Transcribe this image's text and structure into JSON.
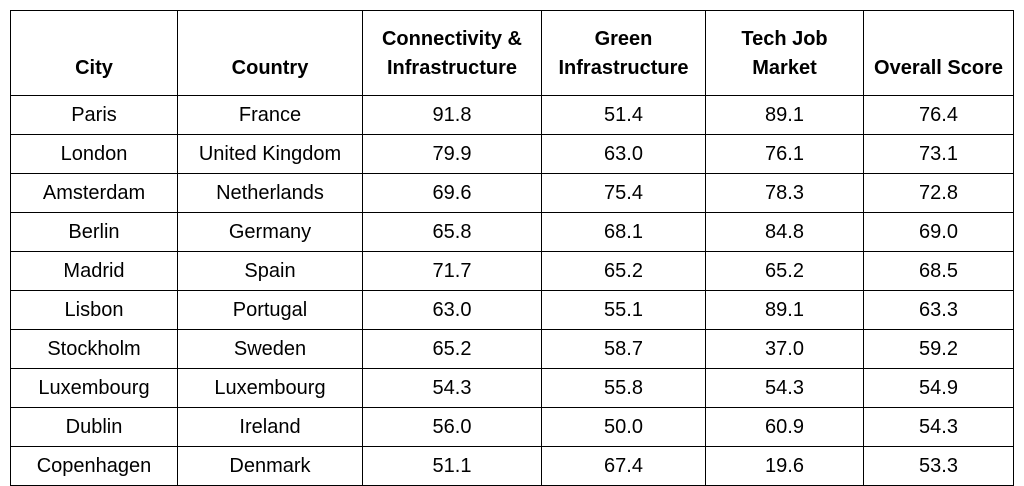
{
  "table": {
    "headers": [
      "City",
      "Country",
      "Connectivity & Infrastructure",
      "Green Infrastructure",
      "Tech Job Market",
      "Overall Score"
    ],
    "rows": [
      [
        "Paris",
        "France",
        "91.8",
        "51.4",
        "89.1",
        "76.4"
      ],
      [
        "London",
        "United Kingdom",
        "79.9",
        "63.0",
        "76.1",
        "73.1"
      ],
      [
        "Amsterdam",
        "Netherlands",
        "69.6",
        "75.4",
        "78.3",
        "72.8"
      ],
      [
        "Berlin",
        "Germany",
        "65.8",
        "68.1",
        "84.8",
        "69.0"
      ],
      [
        "Madrid",
        "Spain",
        "71.7",
        "65.2",
        "65.2",
        "68.5"
      ],
      [
        "Lisbon",
        "Portugal",
        "63.0",
        "55.1",
        "89.1",
        "63.3"
      ],
      [
        "Stockholm",
        "Sweden",
        "65.2",
        "58.7",
        "37.0",
        "59.2"
      ],
      [
        "Luxembourg",
        "Luxembourg",
        "54.3",
        "55.8",
        "54.3",
        "54.9"
      ],
      [
        "Dublin",
        "Ireland",
        "56.0",
        "50.0",
        "60.9",
        "54.3"
      ],
      [
        "Copenhagen",
        "Denmark",
        "51.1",
        "67.4",
        "19.6",
        "53.3"
      ]
    ]
  }
}
